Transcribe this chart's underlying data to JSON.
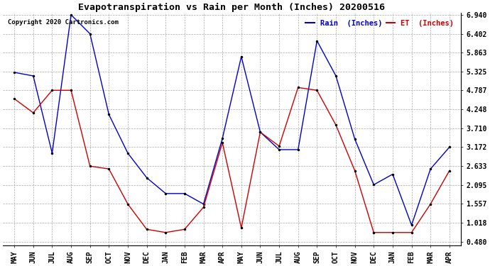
{
  "title": "Evapotranspiration vs Rain per Month (Inches) 20200516",
  "copyright": "Copyright 2020 Cartronics.com",
  "legend_rain": "Rain  (Inches)",
  "legend_et": "ET  (Inches)",
  "x_labels": [
    "MAY",
    "JUN",
    "JUL",
    "AUG",
    "SEP",
    "OCT",
    "NOV",
    "DEC",
    "JAN",
    "FEB",
    "MAR",
    "APR",
    "MAY",
    "JUN",
    "JUL",
    "AUG",
    "SEP",
    "OCT",
    "NOV",
    "DEC",
    "JAN",
    "FEB",
    "MAR",
    "APR"
  ],
  "rain": [
    5.3,
    5.2,
    3.0,
    6.94,
    6.4,
    4.1,
    3.0,
    2.3,
    1.85,
    1.85,
    1.55,
    3.42,
    5.75,
    3.6,
    3.1,
    3.1,
    6.2,
    5.2,
    3.4,
    2.1,
    2.4,
    0.95,
    2.55,
    3.17
  ],
  "et": [
    4.55,
    4.15,
    4.79,
    4.79,
    2.63,
    2.55,
    1.55,
    0.83,
    0.74,
    0.83,
    1.46,
    3.3,
    0.87,
    3.6,
    3.2,
    4.87,
    4.79,
    3.8,
    2.5,
    0.74,
    0.74,
    0.74,
    1.55,
    2.5
  ],
  "rain_color": "#0000cc",
  "et_color": "#cc0000",
  "background_color": "#ffffff",
  "grid_color": "#aaaaaa",
  "y_ticks": [
    0.48,
    1.018,
    1.557,
    2.095,
    2.633,
    3.172,
    3.71,
    4.248,
    4.787,
    5.325,
    5.863,
    6.402,
    6.94
  ],
  "y_tick_labels": [
    "0.480",
    "1.018",
    "1.557",
    "2.095",
    "2.633",
    "3.172",
    "3.710",
    "4.248",
    "4.787",
    "5.325",
    "5.863",
    "6.402",
    "6.940"
  ],
  "ymin": 0.48,
  "ymax": 6.94
}
